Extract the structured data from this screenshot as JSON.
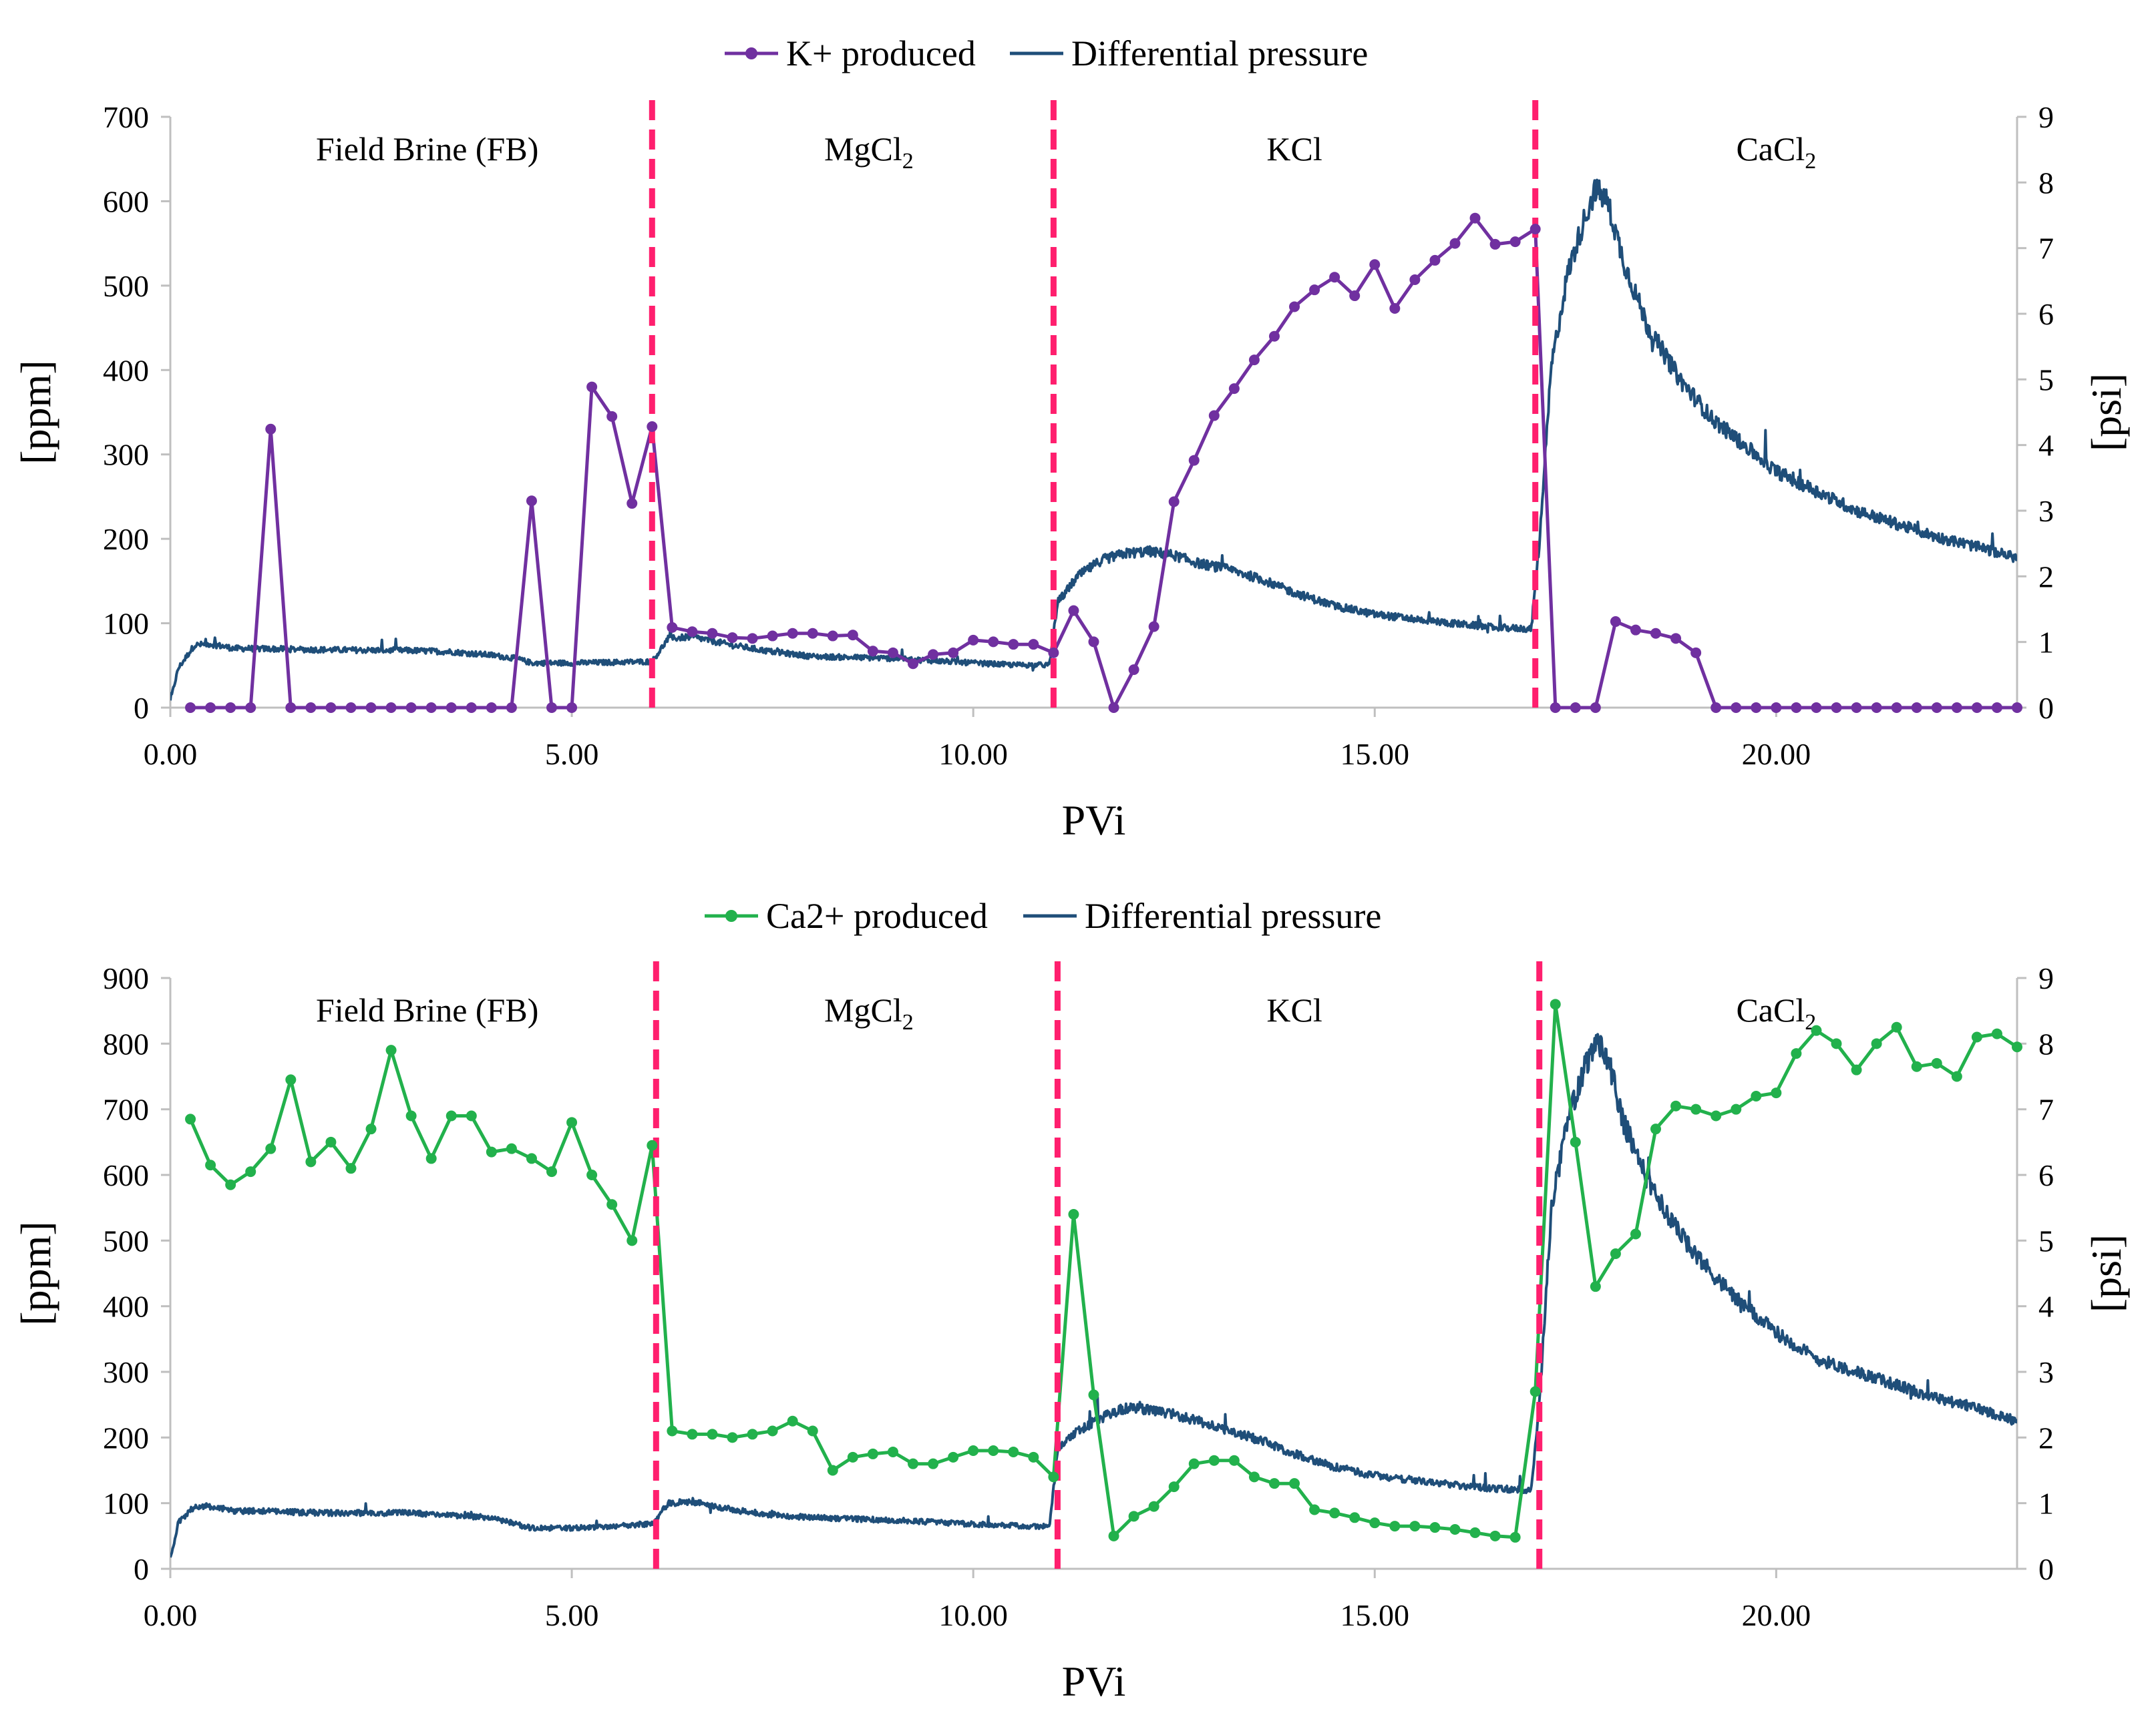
{
  "chart_data": [
    {
      "type": "line",
      "id": "top",
      "xlabel": "PVi",
      "ylabel": "[ppm]",
      "y2label": "[psi]",
      "xlim": [
        0,
        23
      ],
      "ylim": [
        0,
        700
      ],
      "y2lim": [
        0,
        9
      ],
      "xticks": [
        "0.00",
        "5.00",
        "10.00",
        "15.00",
        "20.00"
      ],
      "xtick_values": [
        0,
        5,
        10,
        15,
        20
      ],
      "yticks": [
        0,
        100,
        200,
        300,
        400,
        500,
        600,
        700
      ],
      "y2ticks": [
        0,
        1,
        2,
        3,
        4,
        5,
        6,
        7,
        8,
        9
      ],
      "legend": {
        "position": "top-center",
        "entries": [
          "K+ produced",
          "Differential pressure"
        ]
      },
      "zones": [
        {
          "label": "Field Brine (FB)",
          "sub": "",
          "x": 3.2
        },
        {
          "label": "MgCl",
          "sub": "2",
          "x": 8.7
        },
        {
          "label": "KCl",
          "sub": "",
          "x": 14.0
        },
        {
          "label": "CaCl",
          "sub": "2",
          "x": 20.0
        }
      ],
      "boundaries": [
        6.0,
        11.0,
        17.0
      ],
      "series": [
        {
          "name": "K+ produced",
          "axis": "left",
          "color": "#7030A0",
          "marker": "circle",
          "x": [
            0.25,
            0.5,
            0.75,
            1.0,
            1.25,
            1.5,
            1.75,
            2.0,
            2.25,
            2.5,
            2.75,
            3.0,
            3.25,
            3.5,
            3.75,
            4.0,
            4.25,
            4.5,
            4.75,
            5.0,
            5.25,
            5.5,
            5.75,
            6.0,
            6.25,
            6.5,
            6.75,
            7.0,
            7.25,
            7.5,
            7.75,
            8.0,
            8.25,
            8.5,
            8.75,
            9.0,
            9.25,
            9.5,
            9.75,
            10.0,
            10.25,
            10.5,
            10.75,
            11.0,
            11.25,
            11.5,
            11.75,
            12.0,
            12.25,
            12.5,
            12.75,
            13.0,
            13.25,
            13.5,
            13.75,
            14.0,
            14.25,
            14.5,
            14.75,
            15.0,
            15.25,
            15.5,
            15.75,
            16.0,
            16.25,
            16.5,
            16.75,
            17.0,
            17.25,
            17.5,
            17.75,
            18.0,
            18.25,
            18.5,
            18.75,
            19.0,
            19.25,
            19.5,
            19.75,
            20.0,
            20.25,
            20.5,
            20.75,
            21.0,
            21.25,
            21.5,
            21.75,
            22.0,
            22.25,
            22.5,
            22.75,
            23.0
          ],
          "y": [
            0,
            0,
            0,
            0,
            330,
            0,
            0,
            0,
            0,
            0,
            0,
            0,
            0,
            0,
            0,
            0,
            0,
            245,
            0,
            0,
            380,
            345,
            242,
            333,
            95,
            90,
            88,
            83,
            82,
            85,
            88,
            88,
            85,
            86,
            67,
            65,
            52,
            63,
            65,
            80,
            78,
            75,
            75,
            65,
            115,
            78,
            0,
            45,
            96,
            244,
            293,
            346,
            378,
            412,
            440,
            475,
            495,
            510,
            488,
            525,
            473,
            507,
            530,
            550,
            580,
            549,
            552,
            567,
            0,
            0,
            0,
            102,
            92,
            88,
            82,
            65,
            0,
            0,
            0,
            0,
            0,
            0,
            0,
            0,
            0,
            0,
            0,
            0,
            0,
            0,
            0,
            0
          ]
        },
        {
          "name": "Differential pressure",
          "axis": "right",
          "color": "#1F4E79",
          "marker": "none",
          "x": [
            0.0,
            0.1,
            0.3,
            0.5,
            0.8,
            1.0,
            2.0,
            3.0,
            3.5,
            4.0,
            4.3,
            4.5,
            5.0,
            5.5,
            5.9,
            6.0,
            6.2,
            6.5,
            7.0,
            7.5,
            8.0,
            9.0,
            10.0,
            10.5,
            10.95,
            11.05,
            11.3,
            11.6,
            11.9,
            12.2,
            12.5,
            12.8,
            13.2,
            13.6,
            14.0,
            14.5,
            15.0,
            15.5,
            16.0,
            16.5,
            16.95,
            17.05,
            17.2,
            17.4,
            17.6,
            17.75,
            17.9,
            18.1,
            18.4,
            18.8,
            19.2,
            19.6,
            20.0,
            20.5,
            21.0,
            21.5,
            22.0,
            22.5,
            23.0
          ],
          "y": [
            0.1,
            0.6,
            0.95,
            0.97,
            0.9,
            0.9,
            0.88,
            0.87,
            0.85,
            0.8,
            0.75,
            0.68,
            0.68,
            0.69,
            0.7,
            0.7,
            1.05,
            1.08,
            0.95,
            0.85,
            0.78,
            0.75,
            0.68,
            0.65,
            0.65,
            1.6,
            2.0,
            2.25,
            2.35,
            2.38,
            2.32,
            2.2,
            2.1,
            1.95,
            1.75,
            1.55,
            1.42,
            1.35,
            1.28,
            1.22,
            1.2,
            2.5,
            5.2,
            6.6,
            7.4,
            7.9,
            7.7,
            6.8,
            5.8,
            5.0,
            4.4,
            4.0,
            3.6,
            3.3,
            3.0,
            2.8,
            2.6,
            2.45,
            2.28
          ]
        }
      ]
    },
    {
      "type": "line",
      "id": "bottom",
      "xlabel": "PVi",
      "ylabel": "[ppm]",
      "y2label": "[psi]",
      "xlim": [
        0,
        23
      ],
      "ylim": [
        0,
        900
      ],
      "y2lim": [
        0,
        9
      ],
      "xticks": [
        "0.00",
        "5.00",
        "10.00",
        "15.00",
        "20.00"
      ],
      "xtick_values": [
        0,
        5,
        10,
        15,
        20
      ],
      "yticks": [
        0,
        100,
        200,
        300,
        400,
        500,
        600,
        700,
        800,
        900
      ],
      "y2ticks": [
        0,
        1,
        2,
        3,
        4,
        5,
        6,
        7,
        8,
        9
      ],
      "legend": {
        "position": "top-center",
        "entries": [
          "Ca2+ produced",
          "Differential pressure"
        ]
      },
      "zones": [
        {
          "label": "Field Brine (FB)",
          "sub": "",
          "x": 3.2
        },
        {
          "label": "MgCl",
          "sub": "2",
          "x": 8.7
        },
        {
          "label": "KCl",
          "sub": "",
          "x": 14.0
        },
        {
          "label": "CaCl",
          "sub": "2",
          "x": 20.0
        }
      ],
      "boundaries": [
        6.05,
        11.05,
        17.05
      ],
      "series": [
        {
          "name": "Ca2+ produced",
          "axis": "left",
          "color": "#22B14C",
          "marker": "circle",
          "x": [
            0.25,
            0.5,
            0.75,
            1.0,
            1.25,
            1.5,
            1.75,
            2.0,
            2.25,
            2.5,
            2.75,
            3.0,
            3.25,
            3.5,
            3.75,
            4.0,
            4.25,
            4.5,
            4.75,
            5.0,
            5.25,
            5.5,
            5.75,
            6.0,
            6.25,
            6.5,
            6.75,
            7.0,
            7.25,
            7.5,
            7.75,
            8.0,
            8.25,
            8.5,
            8.75,
            9.0,
            9.25,
            9.5,
            9.75,
            10.0,
            10.25,
            10.5,
            10.75,
            11.0,
            11.25,
            11.5,
            11.75,
            12.0,
            12.25,
            12.5,
            12.75,
            13.0,
            13.25,
            13.5,
            13.75,
            14.0,
            14.25,
            14.5,
            14.75,
            15.0,
            15.25,
            15.5,
            15.75,
            16.0,
            16.25,
            16.5,
            16.75,
            17.0,
            17.25,
            17.5,
            17.75,
            18.0,
            18.25,
            18.5,
            18.75,
            19.0,
            19.25,
            19.5,
            19.75,
            20.0,
            20.25,
            20.5,
            20.75,
            21.0,
            21.25,
            21.5,
            21.75,
            22.0,
            22.25,
            22.5,
            22.75,
            23.0
          ],
          "y": [
            685,
            615,
            585,
            605,
            640,
            745,
            620,
            650,
            610,
            670,
            790,
            690,
            625,
            690,
            690,
            635,
            640,
            625,
            605,
            680,
            600,
            555,
            500,
            645,
            210,
            205,
            205,
            200,
            205,
            210,
            225,
            210,
            150,
            170,
            175,
            178,
            160,
            160,
            170,
            180,
            180,
            178,
            170,
            140,
            540,
            265,
            50,
            80,
            95,
            125,
            160,
            165,
            165,
            140,
            130,
            130,
            90,
            85,
            78,
            70,
            65,
            65,
            63,
            60,
            55,
            50,
            48,
            270,
            860,
            650,
            430,
            480,
            510,
            670,
            705,
            700,
            690,
            700,
            720,
            725,
            785,
            820,
            800,
            760,
            800,
            825,
            765,
            770,
            750,
            810,
            815,
            795
          ]
        },
        {
          "name": "Differential pressure",
          "axis": "right",
          "color": "#1F4E79",
          "marker": "none",
          "x": [
            0.0,
            0.1,
            0.3,
            0.5,
            0.8,
            1.0,
            2.0,
            3.0,
            3.5,
            4.0,
            4.3,
            4.5,
            5.0,
            5.5,
            5.9,
            6.0,
            6.2,
            6.5,
            7.0,
            7.5,
            8.0,
            9.0,
            10.0,
            10.5,
            10.95,
            11.05,
            11.3,
            11.6,
            11.9,
            12.2,
            12.5,
            12.8,
            13.2,
            13.6,
            14.0,
            14.5,
            15.0,
            15.5,
            16.0,
            16.5,
            16.95,
            17.05,
            17.2,
            17.4,
            17.6,
            17.75,
            17.9,
            18.1,
            18.4,
            18.8,
            19.2,
            19.6,
            20.0,
            20.5,
            21.0,
            21.5,
            22.0,
            22.5,
            23.0
          ],
          "y": [
            0.15,
            0.7,
            0.95,
            0.95,
            0.88,
            0.88,
            0.85,
            0.85,
            0.82,
            0.78,
            0.68,
            0.62,
            0.62,
            0.65,
            0.68,
            0.68,
            1.0,
            1.02,
            0.9,
            0.82,
            0.78,
            0.74,
            0.68,
            0.66,
            0.64,
            1.8,
            2.1,
            2.3,
            2.45,
            2.42,
            2.35,
            2.25,
            2.1,
            1.95,
            1.75,
            1.55,
            1.42,
            1.35,
            1.28,
            1.22,
            1.2,
            2.5,
            5.5,
            6.8,
            7.6,
            8.0,
            7.8,
            6.8,
            5.9,
            5.1,
            4.5,
            4.0,
            3.6,
            3.2,
            3.0,
            2.8,
            2.6,
            2.45,
            2.25
          ]
        }
      ]
    }
  ]
}
